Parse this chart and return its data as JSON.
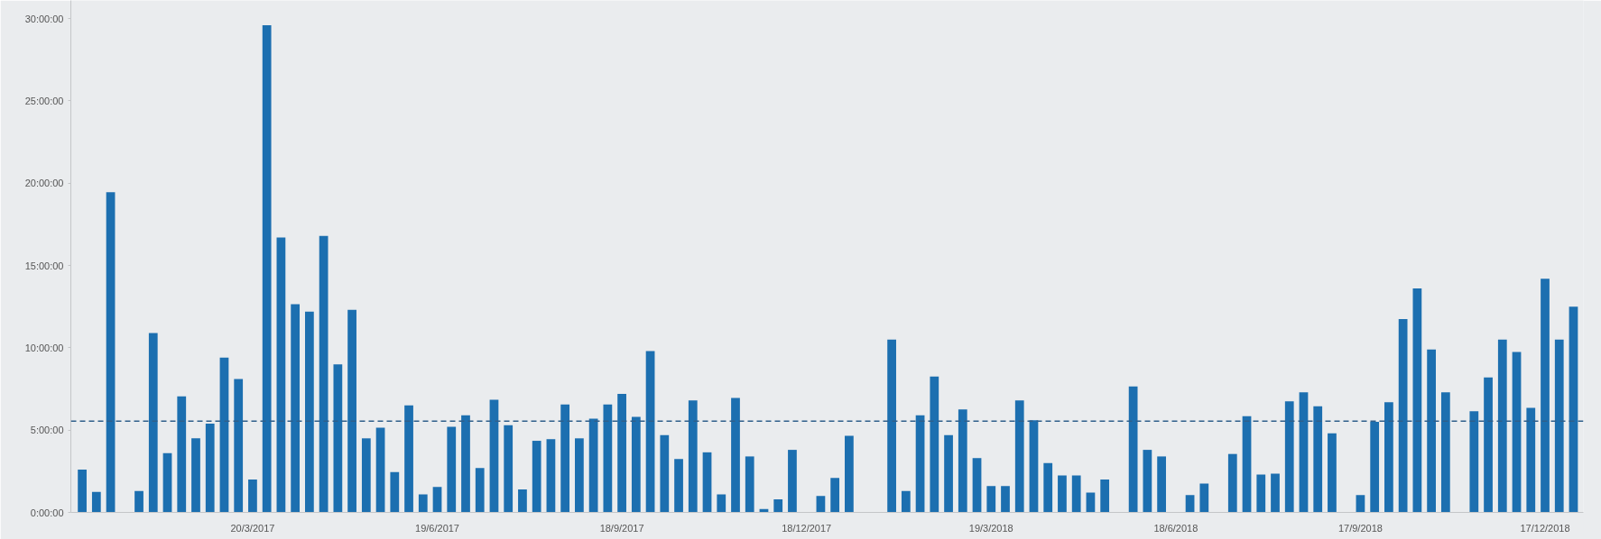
{
  "chart_data": {
    "type": "bar",
    "categories": [
      null,
      null,
      null,
      null,
      null,
      null,
      null,
      null,
      null,
      null,
      null,
      null,
      "20/3/2017",
      null,
      null,
      null,
      null,
      null,
      null,
      null,
      null,
      null,
      null,
      null,
      null,
      "19/6/2017",
      null,
      null,
      null,
      null,
      null,
      null,
      null,
      null,
      null,
      null,
      null,
      null,
      "18/9/2017",
      null,
      null,
      null,
      null,
      null,
      null,
      null,
      null,
      null,
      null,
      null,
      null,
      "18/12/2017",
      null,
      null,
      null,
      null,
      null,
      null,
      null,
      null,
      null,
      null,
      null,
      null,
      "19/3/2018",
      null,
      null,
      null,
      null,
      null,
      null,
      null,
      null,
      null,
      null,
      null,
      null,
      "18/6/2018",
      null,
      null,
      null,
      null,
      null,
      null,
      null,
      null,
      null,
      null,
      null,
      null,
      "17/9/2018",
      null,
      null,
      null,
      null,
      null,
      null,
      null,
      null,
      null,
      null,
      null,
      null,
      "17/12/2018",
      null,
      null
    ],
    "values": [
      2.6,
      1.25,
      19.45,
      null,
      1.3,
      10.9,
      3.6,
      7.05,
      4.5,
      5.4,
      9.4,
      8.1,
      2.0,
      29.6,
      16.7,
      12.65,
      12.2,
      16.8,
      9.0,
      12.3,
      4.5,
      5.15,
      2.45,
      6.5,
      1.1,
      1.55,
      5.2,
      5.9,
      2.7,
      6.85,
      5.3,
      1.4,
      4.35,
      4.45,
      6.55,
      4.5,
      5.7,
      6.55,
      7.2,
      5.8,
      9.8,
      4.7,
      3.25,
      6.8,
      3.65,
      1.1,
      6.95,
      3.4,
      0.2,
      0.8,
      3.8,
      null,
      1.0,
      2.1,
      4.65,
      null,
      null,
      10.5,
      1.3,
      5.9,
      8.25,
      4.7,
      6.25,
      3.3,
      1.6,
      1.6,
      6.8,
      5.6,
      3.0,
      2.25,
      2.25,
      1.2,
      2.0,
      null,
      7.65,
      3.8,
      3.4,
      null,
      1.05,
      1.75,
      null,
      3.55,
      5.85,
      2.3,
      2.35,
      6.75,
      7.3,
      6.45,
      4.8,
      null,
      1.05,
      5.5,
      6.7,
      11.75,
      13.6,
      9.9,
      7.3,
      null,
      6.15,
      8.2,
      10.5,
      9.75,
      6.35,
      14.2,
      10.5,
      12.5
    ],
    "color": "#1c6fb0",
    "ylim": [
      0,
      31.1
    ],
    "yticks": [
      {
        "value": 0,
        "label": "0:00:00"
      },
      {
        "value": 5,
        "label": "5:00:00"
      },
      {
        "value": 10,
        "label": "10:00:00"
      },
      {
        "value": 15,
        "label": "15:00:00"
      },
      {
        "value": 20,
        "label": "20:00:00"
      },
      {
        "value": 25,
        "label": "25:00:00"
      },
      {
        "value": 30,
        "label": "30:00:00"
      }
    ],
    "ref_lines": [
      {
        "axis": "y",
        "value": 5.55,
        "label": null,
        "color": "#2f5f8a",
        "line_style": "dashed"
      }
    ],
    "grid": false
  }
}
